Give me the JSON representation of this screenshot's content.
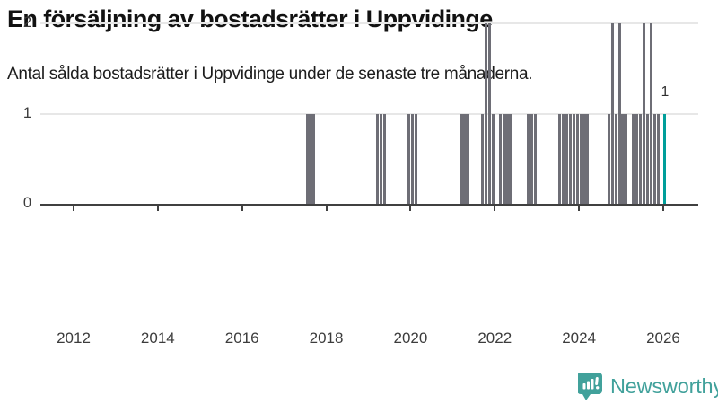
{
  "header": {
    "title": "En försäljning av bostadsrätter i Uppvidinge",
    "subtitle": "Antal sålda bostadsrätter i Uppvidinge under de senaste tre månaderna."
  },
  "footer": {
    "brand": "Newsworthy"
  },
  "colors": {
    "bar": "#6e6e76",
    "highlight": "#009e9a",
    "gridline": "#e7e7e7",
    "axis": "#404040",
    "logo_teal": "#41a19b"
  },
  "chart_data": {
    "type": "bar",
    "title": "En försäljning av bostadsrätter i Uppvidinge",
    "subtitle": "Antal sålda bostadsrätter i Uppvidinge under de senaste tre månaderna.",
    "xlabel": "",
    "ylabel": "",
    "ylim": [
      0,
      2
    ],
    "yticks": [
      0,
      1,
      2
    ],
    "xticks_years": [
      2012,
      2014,
      2016,
      2018,
      2020,
      2022,
      2024,
      2026
    ],
    "grid": true,
    "legend": "none",
    "highlight_label": "1",
    "points": [
      {
        "month": "2017-07",
        "value": 1
      },
      {
        "month": "2017-08",
        "value": 1
      },
      {
        "month": "2017-09",
        "value": 1
      },
      {
        "month": "2019-03",
        "value": 1
      },
      {
        "month": "2019-04",
        "value": 1
      },
      {
        "month": "2019-05",
        "value": 1
      },
      {
        "month": "2019-12",
        "value": 1
      },
      {
        "month": "2020-01",
        "value": 1
      },
      {
        "month": "2020-02",
        "value": 1
      },
      {
        "month": "2021-03",
        "value": 1
      },
      {
        "month": "2021-04",
        "value": 1
      },
      {
        "month": "2021-05",
        "value": 1
      },
      {
        "month": "2021-09",
        "value": 1
      },
      {
        "month": "2021-10",
        "value": 2
      },
      {
        "month": "2021-11",
        "value": 2
      },
      {
        "month": "2021-12",
        "value": 1
      },
      {
        "month": "2022-02",
        "value": 1
      },
      {
        "month": "2022-03",
        "value": 1
      },
      {
        "month": "2022-04",
        "value": 1
      },
      {
        "month": "2022-05",
        "value": 1
      },
      {
        "month": "2022-10",
        "value": 1
      },
      {
        "month": "2022-11",
        "value": 1
      },
      {
        "month": "2022-12",
        "value": 1
      },
      {
        "month": "2023-07",
        "value": 1
      },
      {
        "month": "2023-08",
        "value": 1
      },
      {
        "month": "2023-09",
        "value": 1
      },
      {
        "month": "2023-10",
        "value": 1
      },
      {
        "month": "2023-11",
        "value": 1
      },
      {
        "month": "2023-12",
        "value": 1
      },
      {
        "month": "2024-01",
        "value": 1
      },
      {
        "month": "2024-02",
        "value": 1
      },
      {
        "month": "2024-03",
        "value": 1
      },
      {
        "month": "2024-09",
        "value": 1
      },
      {
        "month": "2024-10",
        "value": 2
      },
      {
        "month": "2024-11",
        "value": 1
      },
      {
        "month": "2024-12",
        "value": 2
      },
      {
        "month": "2025-01",
        "value": 1
      },
      {
        "month": "2025-02",
        "value": 1
      },
      {
        "month": "2025-04",
        "value": 1
      },
      {
        "month": "2025-05",
        "value": 1
      },
      {
        "month": "2025-06",
        "value": 1
      },
      {
        "month": "2025-07",
        "value": 2
      },
      {
        "month": "2025-08",
        "value": 1
      },
      {
        "month": "2025-09",
        "value": 2
      },
      {
        "month": "2025-10",
        "value": 1
      },
      {
        "month": "2025-11",
        "value": 1
      },
      {
        "month": "2026-01",
        "value": 1,
        "highlight": true
      }
    ]
  }
}
